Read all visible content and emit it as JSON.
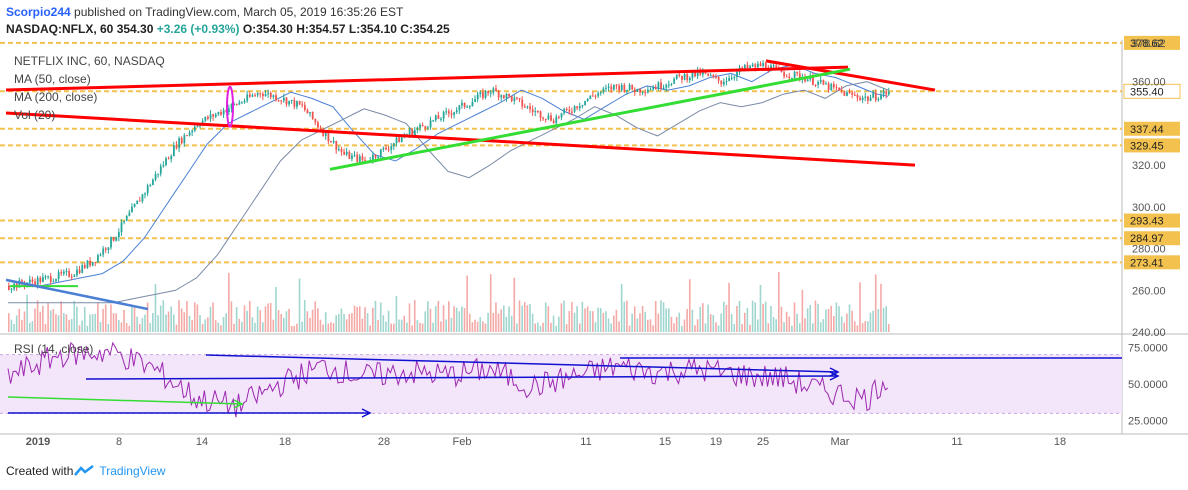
{
  "header": {
    "user": "Scorpio244",
    "published": "published on TradingView.com, March 05, 2019 16:35:26 EST",
    "symbol": "NASDAQ:NFLX, 60",
    "last": "354.30",
    "change": "+3.26 (+0.93%)",
    "o_label": "O:",
    "o_value": "354.30",
    "h_label": "H:",
    "h_value": "354.57",
    "l_label": "L:",
    "l_value": "354.10",
    "c_label": "C:",
    "c_value": "354.25"
  },
  "overlay": {
    "title": "NETFLIX INC, 60, NASDAQ",
    "ma50": "MA (50, close)",
    "ma200": "MA (200, close)",
    "vol": "Vol (20)"
  },
  "rsi_label": "RSI (14, close)",
  "footer": {
    "created": "Created with",
    "brand": "TradingView"
  },
  "colors": {
    "up": "#26a69a",
    "down": "#ef5350",
    "trend_red": "#ff0000",
    "trend_green": "#33dd33",
    "trend_blue": "#4a7fd4",
    "rsi": "#9c27b0",
    "arrow_blue": "#1010d0",
    "hline": "#f2c14e",
    "ma50": "#4a7fd4",
    "ma200": "#7a8aa8",
    "magenta": "#e020e0"
  },
  "chart_data": {
    "type": "candlestick",
    "price_axis": {
      "min": 240,
      "max": 380,
      "ticks": [
        240,
        260,
        280,
        300,
        320,
        340,
        360,
        378.62
      ]
    },
    "price_tick_labels": [
      "240.00",
      "260.00",
      "280.00",
      "300.00",
      "320.00",
      "",
      "360.00",
      "378.62"
    ],
    "x_labels": [
      "2019",
      "8",
      "14",
      "18",
      "28",
      "Feb",
      "11",
      "15",
      "19",
      "25",
      "Mar",
      "11",
      "18"
    ],
    "horizontal_levels": [
      {
        "value": 378.62,
        "label": "378.62"
      },
      {
        "value": 355.4,
        "label": "355.40",
        "current": true
      },
      {
        "value": 337.44,
        "label": "337.44"
      },
      {
        "value": 329.45,
        "label": "329.45"
      },
      {
        "value": 293.43,
        "label": "293.43"
      },
      {
        "value": 284.97,
        "label": "284.97"
      },
      {
        "value": 273.41,
        "label": "273.41"
      }
    ],
    "price_path": [
      [
        0,
        262
      ],
      [
        6,
        268
      ],
      [
        8,
        274
      ],
      [
        10,
        285
      ],
      [
        12,
        300
      ],
      [
        14,
        315
      ],
      [
        16,
        330
      ],
      [
        18,
        340
      ],
      [
        20,
        345
      ],
      [
        22,
        350
      ],
      [
        24,
        355
      ],
      [
        26,
        352
      ],
      [
        28,
        348
      ],
      [
        30,
        336
      ],
      [
        32,
        325
      ],
      [
        34,
        322
      ],
      [
        36,
        328
      ],
      [
        38,
        335
      ],
      [
        40,
        340
      ],
      [
        42,
        345
      ],
      [
        44,
        350
      ],
      [
        46,
        356
      ],
      [
        48,
        352
      ],
      [
        50,
        346
      ],
      [
        52,
        342
      ],
      [
        54,
        348
      ],
      [
        56,
        354
      ],
      [
        58,
        358
      ],
      [
        60,
        356
      ],
      [
        62,
        358
      ],
      [
        64,
        362
      ],
      [
        66,
        364
      ],
      [
        68,
        360
      ],
      [
        70,
        366
      ],
      [
        72,
        368
      ],
      [
        74,
        364
      ],
      [
        76,
        362
      ],
      [
        78,
        358
      ],
      [
        80,
        354
      ],
      [
        82,
        352
      ],
      [
        84,
        355
      ]
    ],
    "rsi_axis": {
      "min": 20,
      "max": 80,
      "ticks": [
        25,
        50,
        75
      ],
      "tick_labels": [
        "25.0000",
        "50.0000",
        "75.0000"
      ]
    },
    "rsi_path": [
      [
        0,
        55
      ],
      [
        5,
        70
      ],
      [
        10,
        72
      ],
      [
        14,
        60
      ],
      [
        18,
        40
      ],
      [
        22,
        35
      ],
      [
        26,
        50
      ],
      [
        30,
        62
      ],
      [
        34,
        55
      ],
      [
        38,
        58
      ],
      [
        42,
        56
      ],
      [
        46,
        60
      ],
      [
        50,
        48
      ],
      [
        54,
        55
      ],
      [
        58,
        62
      ],
      [
        62,
        58
      ],
      [
        66,
        60
      ],
      [
        70,
        56
      ],
      [
        74,
        54
      ],
      [
        78,
        45
      ],
      [
        82,
        40
      ],
      [
        84,
        55
      ]
    ]
  }
}
